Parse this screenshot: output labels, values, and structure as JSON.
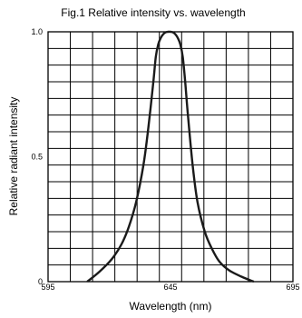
{
  "chart_data": {
    "type": "line",
    "title": "Fig.1 Relative intensity vs. wavelength",
    "xlabel": "Wavelength (nm)",
    "ylabel": "Relative radiant intensity",
    "xlim": [
      595,
      695
    ],
    "ylim": [
      0,
      1.0
    ],
    "x_ticks": [
      "595",
      "645",
      "695"
    ],
    "y_ticks": [
      "0",
      "0.5",
      "1.0"
    ],
    "grid": true,
    "x_grid_lines": 11,
    "y_grid_lines": 15,
    "series": [
      {
        "x": [
          611,
          616,
          621,
          625,
          628,
          631,
          634,
          636,
          638,
          639,
          640,
          641,
          642,
          643,
          644,
          645,
          646,
          647,
          648,
          649,
          650,
          651,
          652,
          654,
          656,
          659,
          662,
          665,
          669,
          674,
          679
        ],
        "values": [
          0.0,
          0.04,
          0.09,
          0.15,
          0.22,
          0.32,
          0.47,
          0.62,
          0.8,
          0.9,
          0.95,
          0.975,
          0.99,
          0.998,
          1.0,
          1.0,
          0.998,
          0.99,
          0.975,
          0.95,
          0.9,
          0.8,
          0.68,
          0.47,
          0.32,
          0.2,
          0.13,
          0.08,
          0.045,
          0.02,
          0.0
        ]
      }
    ]
  }
}
